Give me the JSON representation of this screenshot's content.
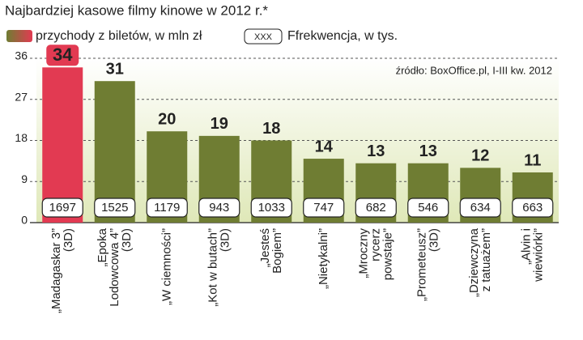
{
  "chart_data": {
    "type": "bar",
    "title": "Najbardziej kasowe filmy kinowe w 2012 r.*",
    "source": "źródło: BoxOffice.pl, I-III kw. 2012",
    "legend_sample": "XXX",
    "categories": [
      "„Madagaskar 3”\n(3D)",
      "„Epoka\nLodowcowa 4”\n(3D)",
      "„W ciemności”",
      "„Kot w butach”\n(3D)",
      "„Jesteś\nBogiem”",
      "„Nietykalni”",
      "„Mroczny\nrycerz\npowstaje”",
      "„Prometeusz”\n(3D)",
      "„Dziewczyna\nz tatuażem”",
      "„Alvin i\nwiewiórki”"
    ],
    "series": [
      {
        "name": "przychody z biletów, w mln zł",
        "color": "#6f7d33",
        "colors": [
          "#e23a52",
          "#6f7d33",
          "#6f7d33",
          "#6f7d33",
          "#6f7d33",
          "#6f7d33",
          "#6f7d33",
          "#6f7d33",
          "#6f7d33",
          "#6f7d33"
        ],
        "values": [
          34,
          31,
          20,
          19,
          18,
          14,
          13,
          13,
          12,
          11
        ]
      },
      {
        "name": "Ffrekwencja, w tys.",
        "values": [
          1697,
          1525,
          1179,
          943,
          1033,
          747,
          682,
          546,
          634,
          663
        ]
      }
    ],
    "ylim": [
      0,
      36
    ],
    "yticks": [
      0,
      9,
      18,
      27,
      36
    ],
    "grid": true
  }
}
